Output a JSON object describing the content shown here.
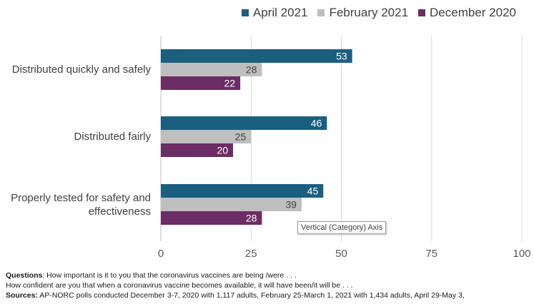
{
  "chart_data": {
    "type": "bar",
    "orientation": "horizontal",
    "categories": [
      "Distributed quickly and safely",
      "Distributed fairly",
      "Properly tested for safety and effectiveness"
    ],
    "category_label_lines": [
      [
        "Distributed quickly and safely"
      ],
      [
        "Distributed fairly"
      ],
      [
        "Properly tested for safety and",
        "effectiveness"
      ]
    ],
    "series": [
      {
        "name": "April 2021",
        "color": "#1b5f7f",
        "values": [
          53,
          46,
          45
        ]
      },
      {
        "name": "February 2021",
        "color": "#bfbfbf",
        "values": [
          28,
          25,
          39
        ]
      },
      {
        "name": "December 2020",
        "color": "#6b2d63",
        "values": [
          22,
          20,
          28
        ]
      }
    ],
    "xlim": [
      0,
      100
    ],
    "xticks": [
      0,
      25,
      50,
      75,
      100
    ],
    "grid": true,
    "legend_position": "top-right",
    "data_labels": true
  },
  "tooltip": "Vertical (Category) Axis",
  "notes": {
    "questions_label": "Questions",
    "questions_text": ": How important is it to you that the coronavirus vaccines are being /were . . .",
    "question2": "How confident are you that when a coronavirus vaccine becomes available, it will have been/it will be . . .",
    "sources_label": "Sources:",
    "sources_text": " AP-NORC polls conducted December 3-7, 2020 with 1,117 adults, February 25-March 1, 2021 with 1,434 adults, April 29-May 3,"
  }
}
